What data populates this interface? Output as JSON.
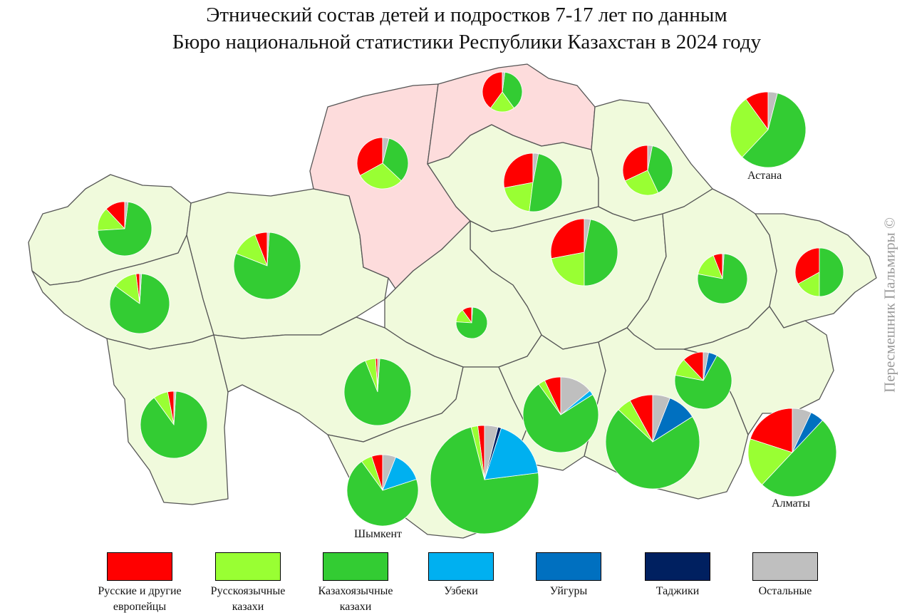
{
  "title": {
    "line1": "Этнический состав детей и подростков 7-17 лет по данным",
    "line2": "Бюро национальной статистики Республики Казахстан в 2024 году"
  },
  "watermark": "Пересмешник Пальмиры ©",
  "colors": {
    "region_fill": "#f0fadc",
    "region_highlight": "#fddcdc",
    "border": "#555555",
    "russians": "#ff0000",
    "rus_kazakhs": "#99ff33",
    "kaz_kazakhs": "#33cc33",
    "uzbeks": "#00b0f0",
    "uyghurs": "#0070c0",
    "tajiks": "#002060",
    "others": "#bfbfbf"
  },
  "legend": [
    {
      "key": "russians",
      "label": "Русские и другие\nевропейцы",
      "color": "#ff0000"
    },
    {
      "key": "rus_kazakhs",
      "label": "Русскоязычные\nказахи",
      "color": "#99ff33"
    },
    {
      "key": "kaz_kazakhs",
      "label": "Казахоязычные\nказахи",
      "color": "#33cc33"
    },
    {
      "key": "uzbeks",
      "label": "Узбеки",
      "color": "#00b0f0"
    },
    {
      "key": "uyghurs",
      "label": "Уйгуры",
      "color": "#0070c0"
    },
    {
      "key": "tajiks",
      "label": "Таджики",
      "color": "#002060"
    },
    {
      "key": "others",
      "label": "Остальные",
      "color": "#bfbfbf"
    }
  ],
  "city_labels": {
    "astana": "Астана",
    "almaty": "Алматы",
    "shymkent": "Шымкент"
  },
  "chart_data": {
    "type": "pie",
    "series_order": [
      "russians",
      "rus_kazakhs",
      "kaz_kazakhs",
      "uzbeks",
      "uyghurs",
      "tajiks",
      "others"
    ],
    "regions": [
      {
        "id": "north-kazakhstan",
        "values": [
          40,
          20,
          38,
          0,
          0,
          0,
          2
        ]
      },
      {
        "id": "kostanay",
        "values": [
          33,
          30,
          33,
          0,
          0,
          0,
          4
        ]
      },
      {
        "id": "akmola",
        "values": [
          28,
          20,
          49,
          0,
          0,
          0,
          3
        ]
      },
      {
        "id": "pavlodar",
        "values": [
          32,
          25,
          40,
          0,
          0,
          0,
          3
        ]
      },
      {
        "id": "astana",
        "values": [
          10,
          28,
          58,
          0,
          0,
          0,
          4
        ]
      },
      {
        "id": "west-kazakhstan",
        "values": [
          12,
          14,
          72,
          0,
          0,
          0,
          2
        ]
      },
      {
        "id": "aktobe",
        "values": [
          6,
          13,
          80,
          0,
          0,
          0,
          1
        ]
      },
      {
        "id": "atyrau",
        "values": [
          2,
          13,
          84,
          0,
          0,
          0,
          1
        ]
      },
      {
        "id": "karaganda",
        "values": [
          28,
          22,
          47,
          0,
          0,
          0,
          3
        ]
      },
      {
        "id": "ulytau",
        "values": [
          10,
          14,
          75,
          0,
          0,
          0,
          1
        ]
      },
      {
        "id": "abai",
        "values": [
          6,
          16,
          77,
          0,
          0,
          0,
          1
        ]
      },
      {
        "id": "east-kazakhstan",
        "values": [
          33,
          17,
          50,
          0,
          0,
          0,
          0
        ]
      },
      {
        "id": "kyzylorda",
        "values": [
          1,
          5,
          93,
          0,
          0,
          0,
          1
        ]
      },
      {
        "id": "mangystau",
        "values": [
          3,
          7,
          89,
          0,
          0,
          0,
          1
        ]
      },
      {
        "id": "turkestan",
        "values": [
          2,
          2,
          73,
          18,
          0,
          1,
          4
        ]
      },
      {
        "id": "shymkent",
        "values": [
          5,
          5,
          70,
          14,
          0,
          0,
          6
        ]
      },
      {
        "id": "zhambyl",
        "values": [
          7,
          3,
          74,
          2,
          0,
          0,
          14
        ]
      },
      {
        "id": "almaty-region",
        "values": [
          8,
          5,
          71,
          0,
          10,
          0,
          6
        ]
      },
      {
        "id": "zhetysu",
        "values": [
          12,
          10,
          70,
          0,
          5,
          0,
          3
        ]
      },
      {
        "id": "almaty",
        "values": [
          20,
          18,
          50,
          0,
          5,
          0,
          7
        ]
      }
    ]
  }
}
